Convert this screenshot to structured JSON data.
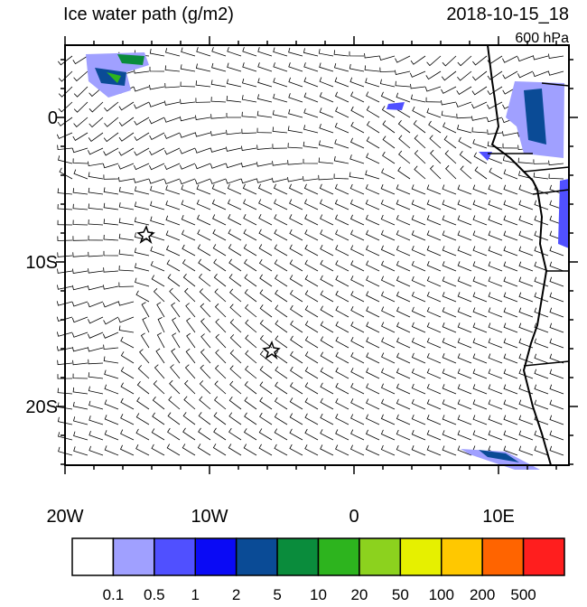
{
  "header": {
    "title": "Ice water path (g/m2)",
    "time": "2018-10-15_18",
    "level": "600 hPa"
  },
  "map": {
    "x_labels": [
      "20W",
      "10W",
      "0",
      "10E"
    ],
    "y_labels": [
      "0",
      "10S",
      "20S"
    ]
  },
  "colorbar": {
    "colors": [
      "#ffffff",
      "#a0a0ff",
      "#5050ff",
      "#0a0af5",
      "#0a4b96",
      "#0a8c3c",
      "#2db41e",
      "#8cd21e",
      "#e6f000",
      "#ffc800",
      "#ff6400",
      "#ff1e1e"
    ],
    "labels": [
      "0.1",
      "0.5",
      "1",
      "2",
      "5",
      "10",
      "20",
      "50",
      "100",
      "200",
      "500"
    ]
  }
}
